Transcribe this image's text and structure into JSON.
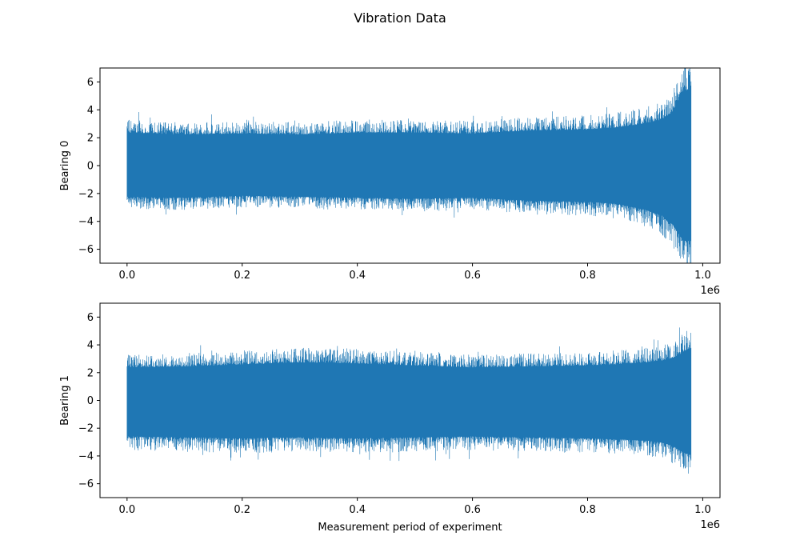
{
  "figure": {
    "title": "Vibration Data"
  },
  "colors": {
    "series": "#1f77b4",
    "axes": "#000000",
    "background": "#ffffff"
  },
  "chart_data": [
    {
      "type": "line",
      "ylabel": "Bearing 0",
      "xlabel": "",
      "xlim": [
        -47000,
        1030000
      ],
      "ylim": [
        -7,
        7
      ],
      "x_ticks": [
        0,
        0.2,
        0.4,
        0.6,
        0.8,
        1.0
      ],
      "x_tick_labels": [
        "0.0",
        "0.2",
        "0.4",
        "0.6",
        "0.8",
        "1.0"
      ],
      "x_offset_label": "1e6",
      "y_ticks": [
        -6,
        -4,
        -2,
        0,
        2,
        4,
        6
      ],
      "y_tick_labels": [
        "−6",
        "−4",
        "−2",
        "0",
        "2",
        "4",
        "6"
      ],
      "grid": false,
      "series": [
        {
          "x_start": 0,
          "x_end": 980000,
          "envelope_x": [
            0,
            100000,
            200000,
            300000,
            400000,
            500000,
            600000,
            700000,
            800000,
            850000,
            900000,
            930000,
            950000,
            960000,
            970000,
            980000
          ],
          "envelope_upper": [
            3.3,
            3.1,
            3.2,
            3.1,
            3.3,
            3.3,
            3.2,
            3.5,
            3.6,
            3.8,
            4.2,
            4.6,
            5.5,
            7.0,
            7.5,
            7.5
          ],
          "envelope_lower": [
            -3.1,
            -3.2,
            -3.0,
            -3.1,
            -3.2,
            -3.3,
            -3.2,
            -3.5,
            -3.6,
            -3.8,
            -4.4,
            -5.0,
            -6.0,
            -7.0,
            -7.5,
            -7.5
          ]
        }
      ]
    },
    {
      "type": "line",
      "ylabel": "Bearing 1",
      "xlabel": "Measurement period of experiment",
      "xlim": [
        -47000,
        1030000
      ],
      "ylim": [
        -7,
        7
      ],
      "x_ticks": [
        0,
        0.2,
        0.4,
        0.6,
        0.8,
        1.0
      ],
      "x_tick_labels": [
        "0.0",
        "0.2",
        "0.4",
        "0.6",
        "0.8",
        "1.0"
      ],
      "x_offset_label": "1e6",
      "y_ticks": [
        -6,
        -4,
        -2,
        0,
        2,
        4,
        6
      ],
      "y_tick_labels": [
        "−6",
        "−4",
        "−2",
        "0",
        "2",
        "4",
        "6"
      ],
      "grid": false,
      "series": [
        {
          "x_start": 0,
          "x_end": 980000,
          "envelope_x": [
            0,
            100000,
            200000,
            300000,
            400000,
            500000,
            600000,
            700000,
            800000,
            850000,
            900000,
            930000,
            950000,
            960000,
            970000,
            980000
          ],
          "envelope_upper": [
            3.3,
            3.4,
            3.6,
            3.8,
            3.7,
            3.5,
            3.3,
            3.4,
            3.5,
            3.6,
            3.8,
            4.0,
            4.3,
            4.6,
            5.0,
            5.2
          ],
          "envelope_lower": [
            -3.6,
            -3.7,
            -3.8,
            -3.7,
            -3.8,
            -3.7,
            -3.6,
            -3.7,
            -3.8,
            -3.9,
            -4.0,
            -4.2,
            -4.6,
            -5.0,
            -5.3,
            -5.4
          ]
        }
      ]
    }
  ]
}
